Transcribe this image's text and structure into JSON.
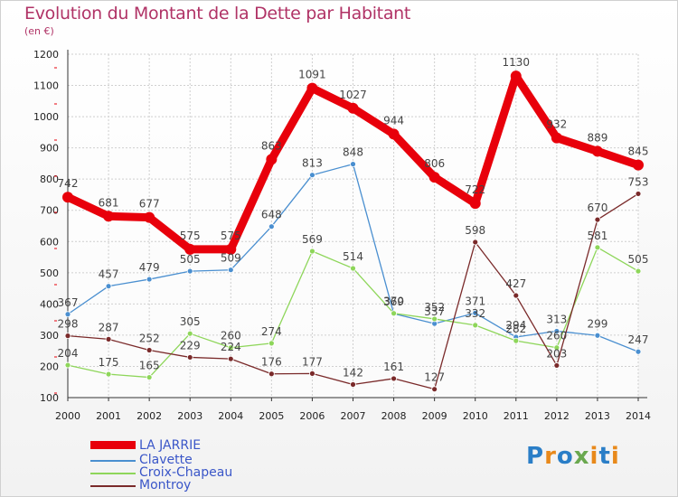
{
  "title": "Evolution du Montant de la Dette par Habitant",
  "subtitle": "(en €)",
  "logo": {
    "text": "Proxiti",
    "colors": [
      "#2a7ec7",
      "#e8891b",
      "#2a7ec7",
      "#6aa84f",
      "#e8891b",
      "#2a7ec7",
      "#e8891b"
    ]
  },
  "chart_data": {
    "type": "line",
    "x": [
      "2000",
      "2001",
      "2002",
      "2003",
      "2004",
      "2005",
      "2006",
      "2007",
      "2008",
      "2009",
      "2010",
      "2011",
      "2012",
      "2013",
      "2014"
    ],
    "ylim": [
      100,
      1200
    ],
    "yticks": [
      100,
      200,
      300,
      400,
      500,
      600,
      700,
      800,
      900,
      1000,
      1100,
      1200
    ],
    "grid": true,
    "legend_position": "bottom-left",
    "series": [
      {
        "name": "LA JARRIE",
        "color": "#e8000b",
        "values": [
          742,
          681,
          677,
          575,
          575,
          863,
          1091,
          1027,
          944,
          806,
          722,
          1130,
          932,
          889,
          845
        ]
      },
      {
        "name": "Clavette",
        "color": "#4a8fd0",
        "values": [
          367,
          457,
          479,
          505,
          509,
          648,
          813,
          848,
          369,
          337,
          371,
          294,
          313,
          299,
          247
        ]
      },
      {
        "name": "Croix-Chapeau",
        "color": "#8ed65a",
        "values": [
          204,
          175,
          165,
          305,
          260,
          274,
          569,
          514,
          370,
          352,
          332,
          282,
          260,
          581,
          505
        ]
      },
      {
        "name": "Montroy",
        "color": "#7a2a2a",
        "values": [
          298,
          287,
          252,
          229,
          224,
          176,
          177,
          142,
          161,
          127,
          598,
          427,
          203,
          670,
          753
        ]
      }
    ]
  }
}
